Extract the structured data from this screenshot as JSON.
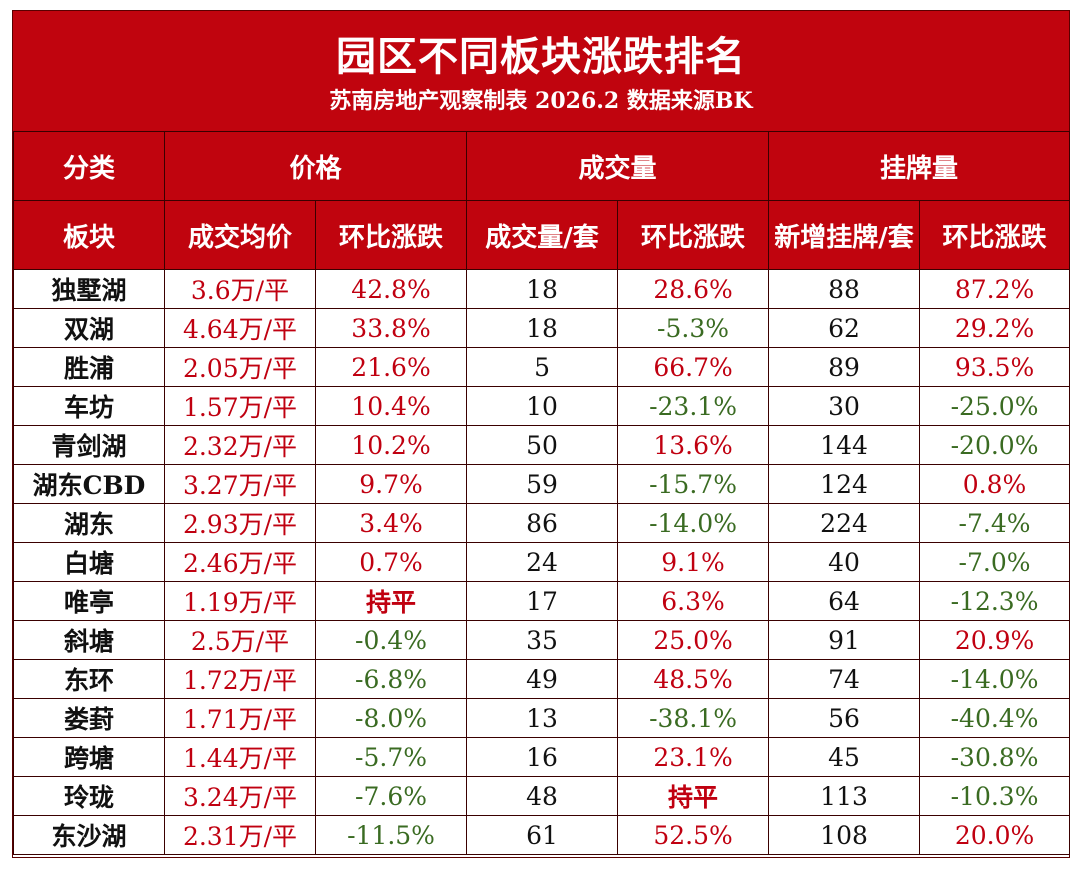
{
  "title": "园区不同板块涨跌排名",
  "subtitle": "苏南房地产观察制表 2026.2 数据来源BK",
  "header_groups": {
    "category": "分类",
    "price": "价格",
    "volume": "成交量",
    "listing": "挂牌量"
  },
  "columns": [
    "板块",
    "成交均价",
    "环比涨跌",
    "成交量/套",
    "环比涨跌",
    "新增挂牌/套",
    "环比涨跌"
  ],
  "colors": {
    "header_bg": "#c0040e",
    "up": "#c00010",
    "down": "#3a6b22",
    "border": "#3a0000"
  },
  "rows": [
    [
      "独墅湖",
      "3.6万/平",
      "42.8%",
      "18",
      "28.6%",
      "88",
      "87.2%"
    ],
    [
      "双湖",
      "4.64万/平",
      "33.8%",
      "18",
      "-5.3%",
      "62",
      "29.2%"
    ],
    [
      "胜浦",
      "2.05万/平",
      "21.6%",
      "5",
      "66.7%",
      "89",
      "93.5%"
    ],
    [
      "车坊",
      "1.57万/平",
      "10.4%",
      "10",
      "-23.1%",
      "30",
      "-25.0%"
    ],
    [
      "青剑湖",
      "2.32万/平",
      "10.2%",
      "50",
      "13.6%",
      "144",
      "-20.0%"
    ],
    [
      "湖东CBD",
      "3.27万/平",
      "9.7%",
      "59",
      "-15.7%",
      "124",
      "0.8%"
    ],
    [
      "湖东",
      "2.93万/平",
      "3.4%",
      "86",
      "-14.0%",
      "224",
      "-7.4%"
    ],
    [
      "白塘",
      "2.46万/平",
      "0.7%",
      "24",
      "9.1%",
      "40",
      "-7.0%"
    ],
    [
      "唯亭",
      "1.19万/平",
      "持平",
      "17",
      "6.3%",
      "64",
      "-12.3%"
    ],
    [
      "斜塘",
      "2.5万/平",
      "-0.4%",
      "35",
      "25.0%",
      "91",
      "20.9%"
    ],
    [
      "东环",
      "1.72万/平",
      "-6.8%",
      "49",
      "48.5%",
      "74",
      "-14.0%"
    ],
    [
      "娄葑",
      "1.71万/平",
      "-8.0%",
      "13",
      "-38.1%",
      "56",
      "-40.4%"
    ],
    [
      "跨塘",
      "1.44万/平",
      "-5.7%",
      "16",
      "23.1%",
      "45",
      "-30.8%"
    ],
    [
      "玲珑",
      "3.24万/平",
      "-7.6%",
      "48",
      "持平",
      "113",
      "-10.3%"
    ],
    [
      "东沙湖",
      "2.31万/平",
      "-11.5%",
      "61",
      "52.5%",
      "108",
      "20.0%"
    ]
  ]
}
